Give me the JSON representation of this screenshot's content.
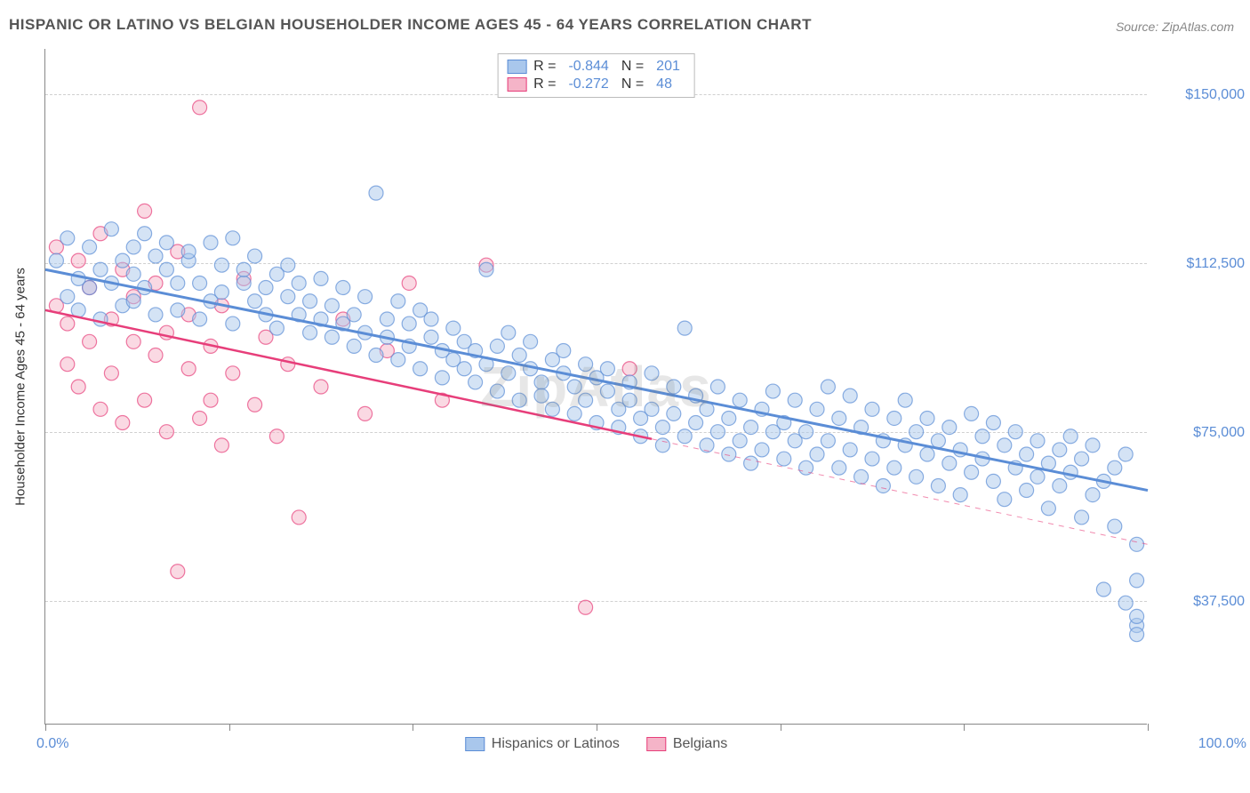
{
  "title": "HISPANIC OR LATINO VS BELGIAN HOUSEHOLDER INCOME AGES 45 - 64 YEARS CORRELATION CHART",
  "source": "Source: ZipAtlas.com",
  "watermark": "ZipAtlas",
  "ylabel": "Householder Income Ages 45 - 64 years",
  "chart": {
    "type": "scatter",
    "xlim": [
      0,
      100
    ],
    "ylim": [
      10000,
      160000
    ],
    "background_color": "#ffffff",
    "grid_color": "#d0d0d0",
    "axis_color": "#888888",
    "tick_label_color": "#5b8dd6",
    "marker_radius": 8,
    "marker_opacity": 0.5,
    "yticks": [
      {
        "v": 37500,
        "label": "$37,500"
      },
      {
        "v": 75000,
        "label": "$75,000"
      },
      {
        "v": 112500,
        "label": "$112,500"
      },
      {
        "v": 150000,
        "label": "$150,000"
      }
    ],
    "xticks_major": [
      0,
      16.67,
      33.33,
      50,
      66.67,
      83.33,
      100
    ],
    "xtick_label_left": "0.0%",
    "xtick_label_right": "100.0%",
    "series": [
      {
        "name": "Hispanics or Latinos",
        "stroke": "#5b8dd6",
        "fill": "#a9c7ec",
        "R": "-0.844",
        "N": "201",
        "trend": {
          "x1": 0,
          "y1": 111000,
          "x2": 100,
          "y2": 62000,
          "solid_until": 100,
          "width": 3
        },
        "points": [
          [
            1,
            113000
          ],
          [
            2,
            118000
          ],
          [
            2,
            105000
          ],
          [
            3,
            109000
          ],
          [
            3,
            102000
          ],
          [
            4,
            116000
          ],
          [
            4,
            107000
          ],
          [
            5,
            111000
          ],
          [
            5,
            100000
          ],
          [
            6,
            120000
          ],
          [
            6,
            108000
          ],
          [
            7,
            113000
          ],
          [
            7,
            103000
          ],
          [
            8,
            116000
          ],
          [
            8,
            110000
          ],
          [
            8,
            104000
          ],
          [
            9,
            119000
          ],
          [
            9,
            107000
          ],
          [
            10,
            114000
          ],
          [
            10,
            101000
          ],
          [
            11,
            117000
          ],
          [
            11,
            111000
          ],
          [
            12,
            108000
          ],
          [
            12,
            102000
          ],
          [
            13,
            113000
          ],
          [
            13,
            115000
          ],
          [
            14,
            108000
          ],
          [
            14,
            100000
          ],
          [
            15,
            117000
          ],
          [
            15,
            104000
          ],
          [
            16,
            112000
          ],
          [
            16,
            106000
          ],
          [
            17,
            118000
          ],
          [
            17,
            99000
          ],
          [
            18,
            108000
          ],
          [
            18,
            111000
          ],
          [
            19,
            104000
          ],
          [
            19,
            114000
          ],
          [
            20,
            101000
          ],
          [
            20,
            107000
          ],
          [
            21,
            110000
          ],
          [
            21,
            98000
          ],
          [
            22,
            105000
          ],
          [
            22,
            112000
          ],
          [
            23,
            101000
          ],
          [
            23,
            108000
          ],
          [
            24,
            97000
          ],
          [
            24,
            104000
          ],
          [
            25,
            109000
          ],
          [
            25,
            100000
          ],
          [
            26,
            103000
          ],
          [
            26,
            96000
          ],
          [
            27,
            107000
          ],
          [
            27,
            99000
          ],
          [
            28,
            94000
          ],
          [
            28,
            101000
          ],
          [
            29,
            105000
          ],
          [
            29,
            97000
          ],
          [
            30,
            92000
          ],
          [
            30,
            128000
          ],
          [
            31,
            100000
          ],
          [
            31,
            96000
          ],
          [
            32,
            104000
          ],
          [
            32,
            91000
          ],
          [
            33,
            99000
          ],
          [
            33,
            94000
          ],
          [
            34,
            102000
          ],
          [
            34,
            89000
          ],
          [
            35,
            100000
          ],
          [
            35,
            96000
          ],
          [
            36,
            93000
          ],
          [
            36,
            87000
          ],
          [
            37,
            98000
          ],
          [
            37,
            91000
          ],
          [
            38,
            95000
          ],
          [
            38,
            89000
          ],
          [
            39,
            93000
          ],
          [
            39,
            86000
          ],
          [
            40,
            111000
          ],
          [
            40,
            90000
          ],
          [
            41,
            94000
          ],
          [
            41,
            84000
          ],
          [
            42,
            97000
          ],
          [
            42,
            88000
          ],
          [
            43,
            92000
          ],
          [
            43,
            82000
          ],
          [
            44,
            89000
          ],
          [
            44,
            95000
          ],
          [
            45,
            86000
          ],
          [
            45,
            83000
          ],
          [
            46,
            91000
          ],
          [
            46,
            80000
          ],
          [
            47,
            88000
          ],
          [
            47,
            93000
          ],
          [
            48,
            85000
          ],
          [
            48,
            79000
          ],
          [
            49,
            90000
          ],
          [
            49,
            82000
          ],
          [
            50,
            87000
          ],
          [
            50,
            77000
          ],
          [
            51,
            84000
          ],
          [
            51,
            89000
          ],
          [
            52,
            80000
          ],
          [
            52,
            76000
          ],
          [
            53,
            86000
          ],
          [
            53,
            82000
          ],
          [
            54,
            78000
          ],
          [
            54,
            74000
          ],
          [
            55,
            88000
          ],
          [
            55,
            80000
          ],
          [
            56,
            76000
          ],
          [
            56,
            72000
          ],
          [
            57,
            85000
          ],
          [
            57,
            79000
          ],
          [
            58,
            74000
          ],
          [
            58,
            98000
          ],
          [
            59,
            83000
          ],
          [
            59,
            77000
          ],
          [
            60,
            72000
          ],
          [
            60,
            80000
          ],
          [
            61,
            85000
          ],
          [
            61,
            75000
          ],
          [
            62,
            70000
          ],
          [
            62,
            78000
          ],
          [
            63,
            82000
          ],
          [
            63,
            73000
          ],
          [
            64,
            68000
          ],
          [
            64,
            76000
          ],
          [
            65,
            80000
          ],
          [
            65,
            71000
          ],
          [
            66,
            75000
          ],
          [
            66,
            84000
          ],
          [
            67,
            69000
          ],
          [
            67,
            77000
          ],
          [
            68,
            73000
          ],
          [
            68,
            82000
          ],
          [
            69,
            67000
          ],
          [
            69,
            75000
          ],
          [
            70,
            80000
          ],
          [
            70,
            70000
          ],
          [
            71,
            85000
          ],
          [
            71,
            73000
          ],
          [
            72,
            67000
          ],
          [
            72,
            78000
          ],
          [
            73,
            71000
          ],
          [
            73,
            83000
          ],
          [
            74,
            65000
          ],
          [
            74,
            76000
          ],
          [
            75,
            69000
          ],
          [
            75,
            80000
          ],
          [
            76,
            73000
          ],
          [
            76,
            63000
          ],
          [
            77,
            78000
          ],
          [
            77,
            67000
          ],
          [
            78,
            72000
          ],
          [
            78,
            82000
          ],
          [
            79,
            65000
          ],
          [
            79,
            75000
          ],
          [
            80,
            70000
          ],
          [
            80,
            78000
          ],
          [
            81,
            63000
          ],
          [
            81,
            73000
          ],
          [
            82,
            68000
          ],
          [
            82,
            76000
          ],
          [
            83,
            61000
          ],
          [
            83,
            71000
          ],
          [
            84,
            66000
          ],
          [
            84,
            79000
          ],
          [
            85,
            69000
          ],
          [
            85,
            74000
          ],
          [
            86,
            64000
          ],
          [
            86,
            77000
          ],
          [
            87,
            60000
          ],
          [
            87,
            72000
          ],
          [
            88,
            67000
          ],
          [
            88,
            75000
          ],
          [
            89,
            62000
          ],
          [
            89,
            70000
          ],
          [
            90,
            73000
          ],
          [
            90,
            65000
          ],
          [
            91,
            58000
          ],
          [
            91,
            68000
          ],
          [
            92,
            63000
          ],
          [
            92,
            71000
          ],
          [
            93,
            66000
          ],
          [
            93,
            74000
          ],
          [
            94,
            56000
          ],
          [
            94,
            69000
          ],
          [
            95,
            61000
          ],
          [
            95,
            72000
          ],
          [
            96,
            64000
          ],
          [
            96,
            40000
          ],
          [
            97,
            54000
          ],
          [
            97,
            67000
          ],
          [
            98,
            37000
          ],
          [
            98,
            70000
          ],
          [
            99,
            42000
          ],
          [
            99,
            32000
          ],
          [
            99,
            34000
          ],
          [
            99,
            30000
          ],
          [
            99,
            50000
          ]
        ]
      },
      {
        "name": "Belgians",
        "stroke": "#e73e7a",
        "fill": "#f5b4c8",
        "R": "-0.272",
        "N": "48",
        "trend": {
          "x1": 0,
          "y1": 102000,
          "x2": 100,
          "y2": 50000,
          "solid_until": 55,
          "width": 2.5
        },
        "points": [
          [
            1,
            116000
          ],
          [
            1,
            103000
          ],
          [
            2,
            99000
          ],
          [
            2,
            90000
          ],
          [
            3,
            113000
          ],
          [
            3,
            85000
          ],
          [
            4,
            107000
          ],
          [
            4,
            95000
          ],
          [
            5,
            119000
          ],
          [
            5,
            80000
          ],
          [
            6,
            100000
          ],
          [
            6,
            88000
          ],
          [
            7,
            111000
          ],
          [
            7,
            77000
          ],
          [
            8,
            95000
          ],
          [
            8,
            105000
          ],
          [
            9,
            124000
          ],
          [
            9,
            82000
          ],
          [
            10,
            92000
          ],
          [
            10,
            108000
          ],
          [
            11,
            75000
          ],
          [
            11,
            97000
          ],
          [
            12,
            115000
          ],
          [
            12,
            44000
          ],
          [
            13,
            89000
          ],
          [
            13,
            101000
          ],
          [
            14,
            78000
          ],
          [
            14,
            147000
          ],
          [
            15,
            94000
          ],
          [
            15,
            82000
          ],
          [
            16,
            103000
          ],
          [
            16,
            72000
          ],
          [
            17,
            88000
          ],
          [
            18,
            109000
          ],
          [
            19,
            81000
          ],
          [
            20,
            96000
          ],
          [
            21,
            74000
          ],
          [
            22,
            90000
          ],
          [
            23,
            56000
          ],
          [
            25,
            85000
          ],
          [
            27,
            100000
          ],
          [
            29,
            79000
          ],
          [
            31,
            93000
          ],
          [
            33,
            108000
          ],
          [
            36,
            82000
          ],
          [
            40,
            112000
          ],
          [
            49,
            36000
          ],
          [
            53,
            89000
          ]
        ]
      }
    ]
  },
  "legend": {
    "r_label": "R =",
    "n_label": "N ="
  }
}
